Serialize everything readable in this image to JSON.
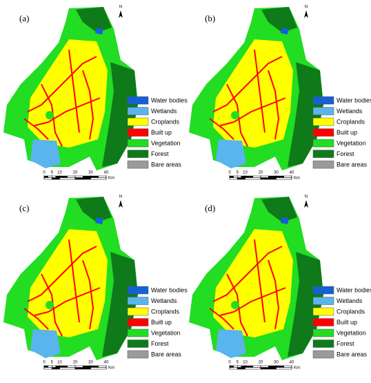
{
  "panels": [
    {
      "label": "(a)"
    },
    {
      "label": "(b)"
    },
    {
      "label": "(c)"
    },
    {
      "label": "(d)"
    }
  ],
  "north": "N",
  "legend": [
    {
      "name": "Water bodies",
      "color": "#1560d8"
    },
    {
      "name": "Wetlands",
      "color": "#5ab4ee"
    },
    {
      "name": "Croplands",
      "color": "#ffff00"
    },
    {
      "name": "Built up",
      "color": "#ff0000"
    },
    {
      "name": "Vegetation",
      "color": "#22dd22"
    },
    {
      "name": "Forest",
      "color": "#0e7a1a"
    },
    {
      "name": "Bare areas",
      "color": "#9a9a9a"
    }
  ],
  "scale": {
    "ticks": [
      0,
      5,
      10,
      20,
      30,
      40
    ],
    "unit": "Km"
  }
}
